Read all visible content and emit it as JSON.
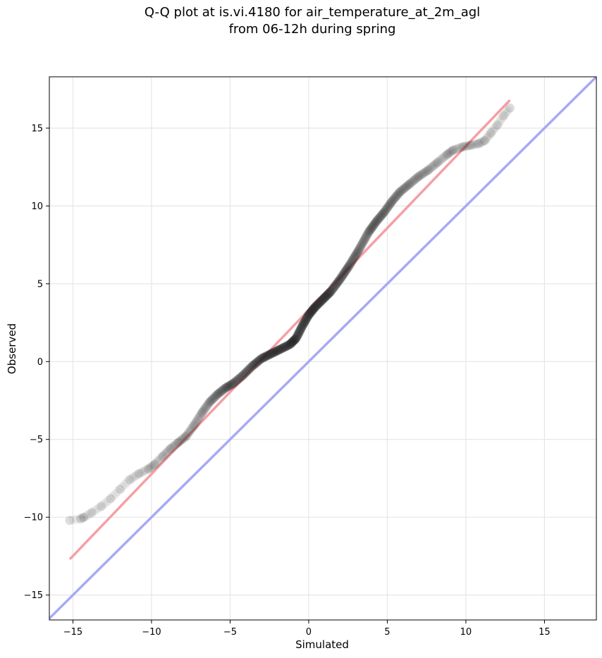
{
  "chart_data": {
    "type": "scatter",
    "title_line1": "Q-Q plot at is.vi.4180 for air_temperature_at_2m_agl",
    "title_line2": "from 06-12h during spring",
    "xlabel": "Simulated",
    "ylabel": "Observed",
    "xlim": [
      -16.5,
      18.3
    ],
    "ylim": [
      -16.6,
      18.3
    ],
    "xticks": [
      -15,
      -10,
      -5,
      0,
      5,
      10,
      15
    ],
    "yticks": [
      -15,
      -10,
      -5,
      0,
      5,
      10,
      15
    ],
    "xtick_labels": [
      "−15",
      "−10",
      "−5",
      "0",
      "5",
      "10",
      "15"
    ],
    "ytick_labels": [
      "−15",
      "−10",
      "−5",
      "0",
      "5",
      "10",
      "15"
    ],
    "grid": true,
    "quantile_points": {
      "x": [
        -15.2,
        -14.5,
        -14.3,
        -13.8,
        -13.2,
        -12.6,
        -12.0,
        -11.4,
        -10.8,
        -10.2,
        -9.8,
        -9.3,
        -8.8,
        -8.3,
        -7.8,
        -7.3,
        -6.8,
        -6.3,
        -5.8,
        -5.3,
        -4.8,
        -4.2,
        -3.6,
        -3.0,
        -2.4,
        -1.8,
        -1.2,
        -0.8,
        -0.4,
        0.0,
        0.4,
        0.9,
        1.4,
        2.0,
        2.6,
        3.2,
        3.8,
        4.3,
        4.8,
        5.3,
        5.8,
        6.4,
        7.0,
        7.6,
        8.2,
        8.8,
        9.2,
        9.8,
        10.3,
        10.8,
        11.2,
        11.6,
        12.0,
        12.4,
        12.8
      ],
      "y": [
        -10.2,
        -10.1,
        -10.0,
        -9.7,
        -9.3,
        -8.8,
        -8.2,
        -7.6,
        -7.2,
        -6.9,
        -6.6,
        -6.1,
        -5.6,
        -5.2,
        -4.8,
        -4.1,
        -3.3,
        -2.6,
        -2.1,
        -1.7,
        -1.4,
        -0.9,
        -0.3,
        0.2,
        0.5,
        0.8,
        1.1,
        1.5,
        2.3,
        3.0,
        3.5,
        4.0,
        4.5,
        5.3,
        6.2,
        7.2,
        8.3,
        9.0,
        9.6,
        10.3,
        10.9,
        11.4,
        11.9,
        12.3,
        12.8,
        13.3,
        13.6,
        13.8,
        13.9,
        14.0,
        14.2,
        14.7,
        15.2,
        15.8,
        16.3
      ]
    },
    "reference_lines": [
      {
        "type": "fit",
        "color": "#f4a0a3",
        "x": [
          -15.2,
          12.8
        ],
        "y": [
          -12.7,
          16.8
        ]
      },
      {
        "type": "identity",
        "color": "#a7aaf2",
        "x": [
          -16.5,
          18.3
        ],
        "y": [
          -16.5,
          18.3
        ]
      }
    ],
    "point_color": "#222222"
  }
}
